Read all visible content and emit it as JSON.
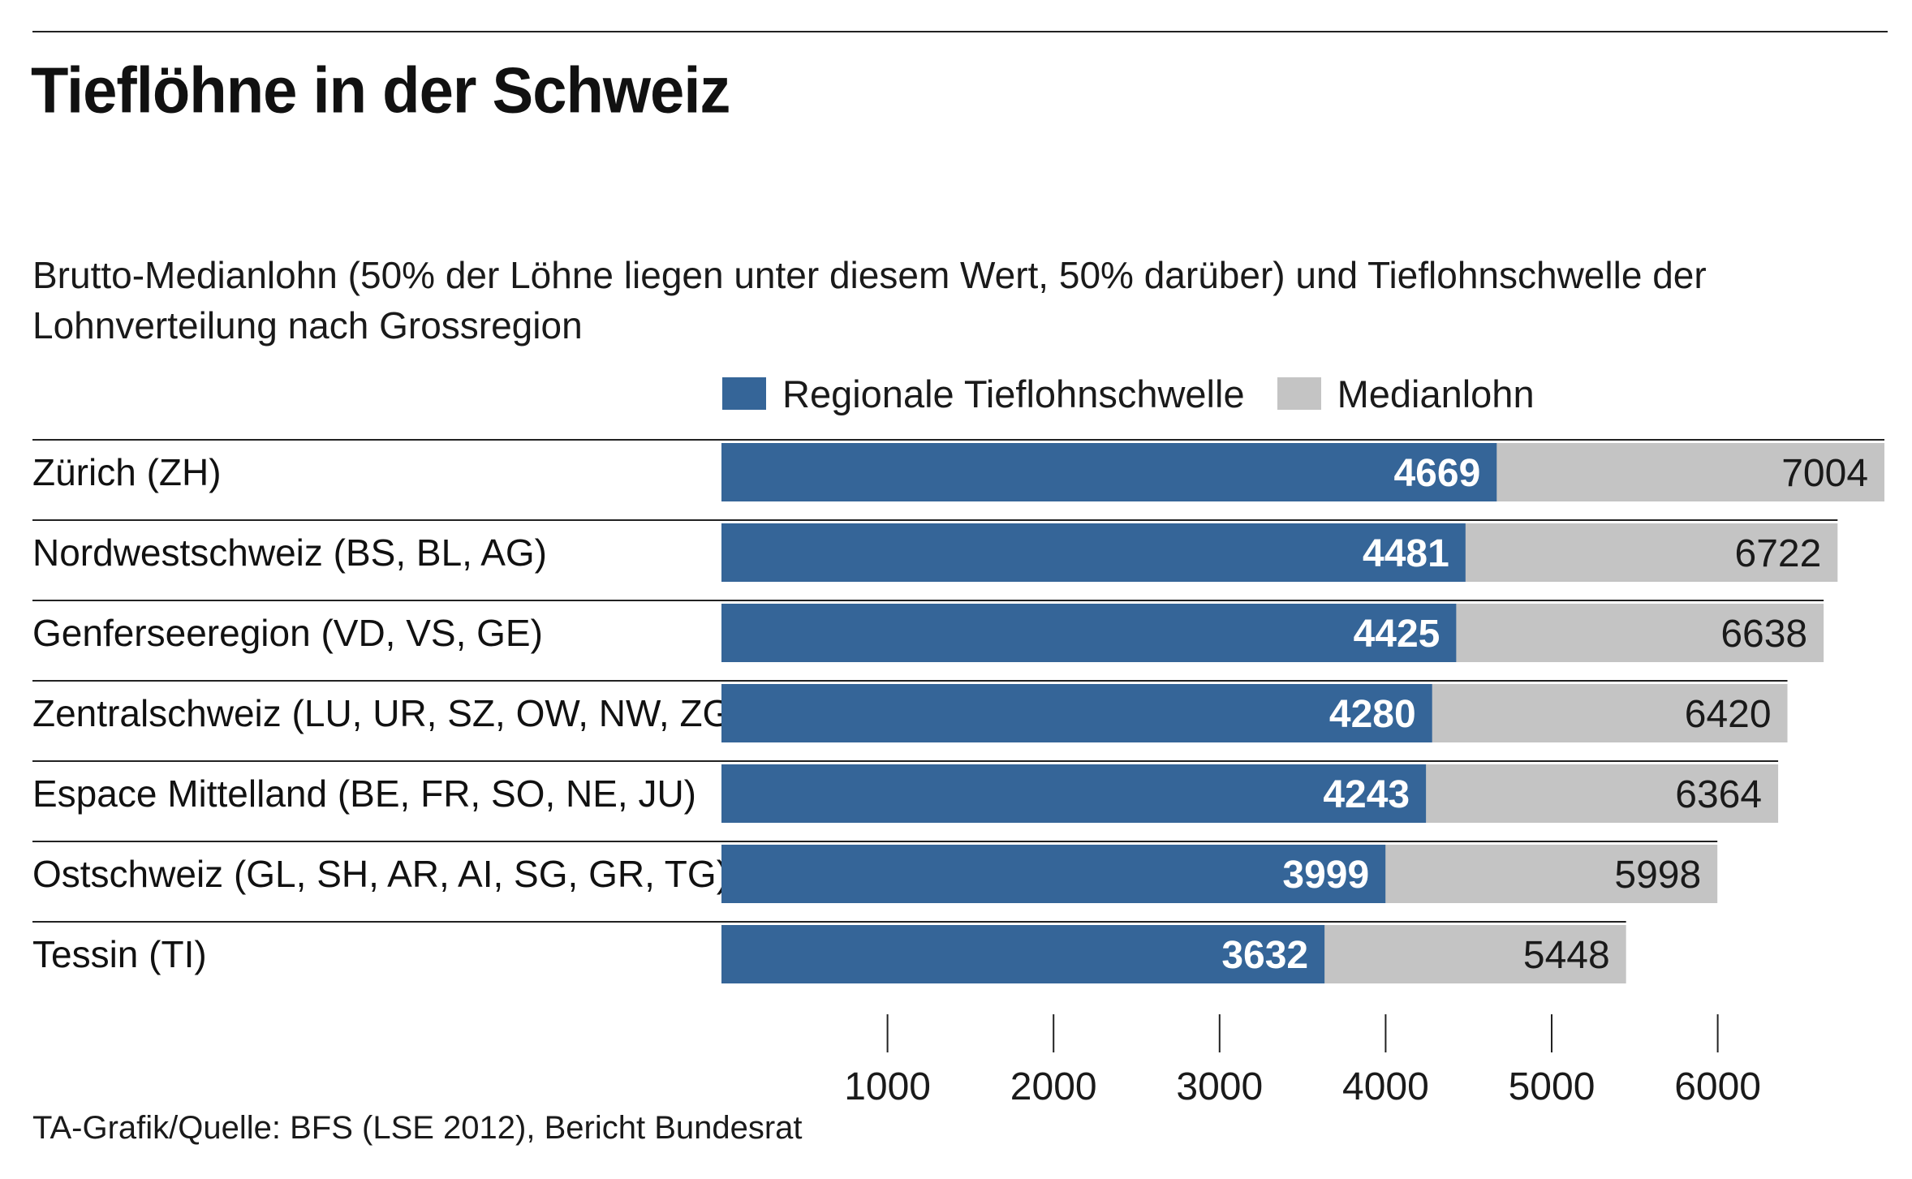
{
  "chart_data": {
    "type": "bar",
    "orientation": "horizontal",
    "title": "Tieflöhne in der Schweiz",
    "subtitle": "Brutto-Medianlohn (50% der Löhne liegen unter diesem Wert, 50% darüber) und Tieflohnschwelle der Lohnverteilung nach Grossregion",
    "categories": [
      "Zürich (ZH)",
      "Nordwestschweiz (BS, BL, AG)",
      "Genferseeregion (VD, VS, GE)",
      "Zentralschweiz (LU, UR, SZ, OW, NW, ZG)",
      "Espace Mittelland (BE, FR, SO, NE, JU)",
      "Ostschweiz (GL, SH, AR, AI, SG, GR, TG)",
      "Tessin (TI)"
    ],
    "series": [
      {
        "name": "Regionale Tieflohnschwelle",
        "color": "#356598",
        "values": [
          4669,
          4481,
          4425,
          4280,
          4243,
          3999,
          3632
        ]
      },
      {
        "name": "Medianlohn",
        "color": "#c4c4c4",
        "values": [
          7004,
          6722,
          6638,
          6420,
          6364,
          5998,
          5448
        ]
      }
    ],
    "xticks": [
      1000,
      2000,
      3000,
      4000,
      5000,
      6000
    ],
    "xlim": [
      0,
      7004
    ],
    "legend_position": "top",
    "grid": false
  },
  "footer": "TA-Grafik/Quelle: BFS (LSE 2012), Bericht Bundesrat"
}
